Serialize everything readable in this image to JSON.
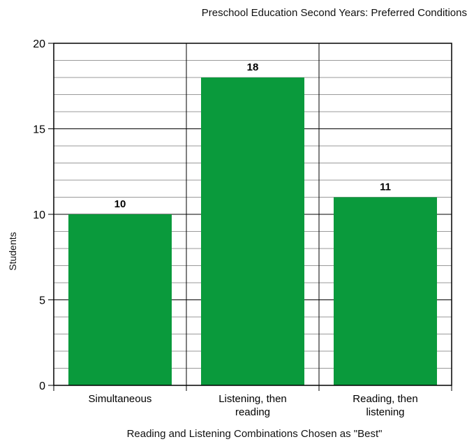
{
  "chart_data": {
    "type": "bar",
    "title": "Preschool Education Second Years: Preferred Conditions",
    "xlabel": "Reading and Listening Combinations Chosen as \"Best\"",
    "ylabel": "Students",
    "categories": [
      [
        "Simultaneous"
      ],
      [
        "Listening, then",
        "reading"
      ],
      [
        "Reading, then",
        "listening"
      ]
    ],
    "values": [
      10,
      18,
      11
    ],
    "data_labels": [
      "10",
      "18",
      "11"
    ],
    "ylim": [
      0,
      20
    ],
    "yticks": [
      0,
      5,
      10,
      15,
      20
    ],
    "ytick_labels": [
      "0",
      "5",
      "10",
      "15",
      "20"
    ],
    "minor_step": 1,
    "grid": true,
    "legend": "none",
    "bar_color": "#0a9a3c",
    "major_grid_color": "#000000",
    "minor_grid_color": "#9a9a9a"
  }
}
